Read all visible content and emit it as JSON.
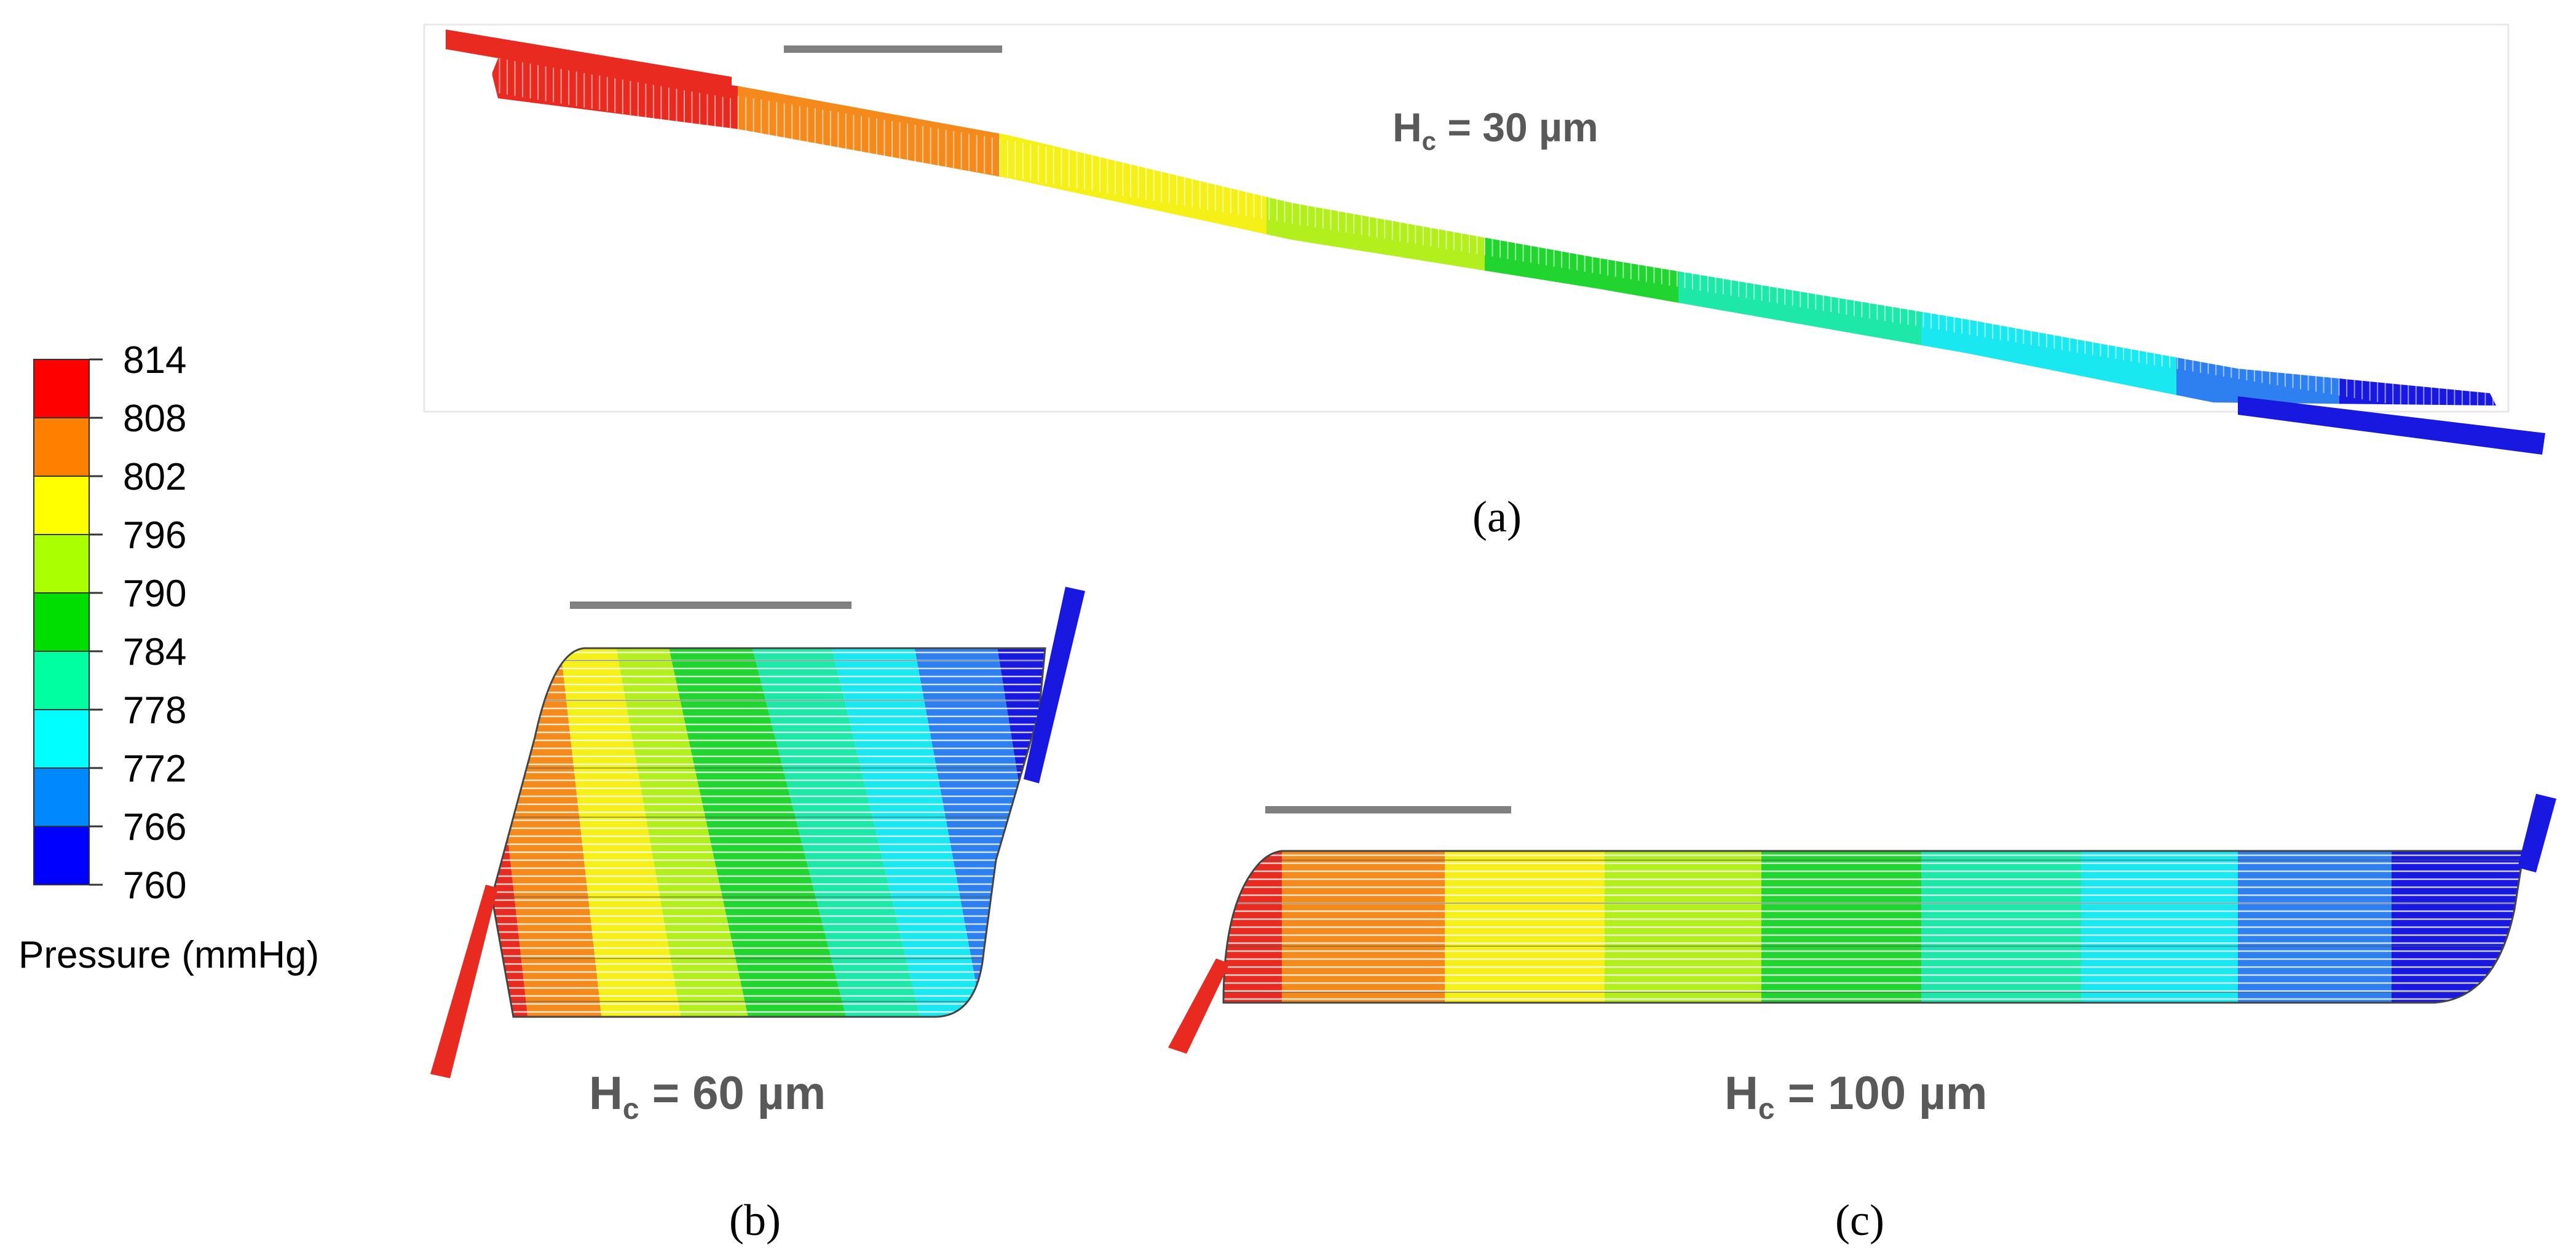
{
  "legend": {
    "title": "Pressure (mmHg)",
    "ticks": [
      "814",
      "808",
      "802",
      "796",
      "790",
      "784",
      "778",
      "772",
      "766",
      "760"
    ],
    "colors": [
      "#ff0000",
      "#ff7f00",
      "#ffff00",
      "#aaff00",
      "#00dd00",
      "#00ffa0",
      "#00ffff",
      "#0088ff",
      "#0000ff"
    ]
  },
  "panels": {
    "a": {
      "label": "(a)",
      "hc_prefix": "H",
      "hc_sub": "c",
      "hc_value": " = 30 µm"
    },
    "b": {
      "label": "(b)",
      "hc_prefix": "H",
      "hc_sub": "c",
      "hc_value": " = 60 µm"
    },
    "c": {
      "label": "(c)",
      "hc_prefix": "H",
      "hc_sub": "c",
      "hc_value": " = 100 µm"
    }
  },
  "colors": {
    "scale_bar": "#808080",
    "text_gray": "#595959",
    "channel_line": "#ffffff",
    "outline": "#444444"
  }
}
